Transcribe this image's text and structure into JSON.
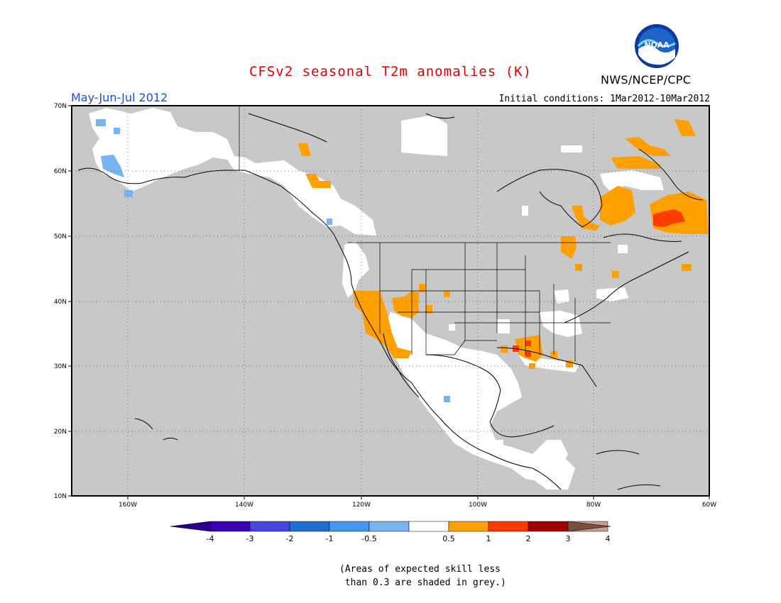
{
  "header": {
    "title": "CFSv2 seasonal T2m anomalies (K)",
    "agency": "NWS/NCEP/CPC",
    "period": "May-Jun-Jul 2012",
    "initial_conditions": "Initial conditions: 1Mar2012-10Mar2012",
    "logo_text": "NOAA"
  },
  "map": {
    "lat_labels": [
      "70N",
      "60N",
      "50N",
      "40N",
      "30N",
      "20N",
      "10N"
    ],
    "lon_labels": [
      "160W",
      "140W",
      "120W",
      "100W",
      "80W",
      "60W"
    ],
    "colors": {
      "grey_low_skill": "#c8c8c8",
      "neutral": "#ffffff",
      "warm_0_5_1": "#ffa000",
      "warm_1_2": "#ff3c00",
      "cool_m1_m0_5": "#78b4f0"
    }
  },
  "colorbar": {
    "labels": [
      "-4",
      "-3",
      "-2",
      "-1",
      "-0.5",
      "0.5",
      "1",
      "2",
      "3",
      "4"
    ],
    "colors": [
      "#3c00b4",
      "#4646dc",
      "#1e6ed2",
      "#4696f0",
      "#78b4f0",
      "#ffffff",
      "#ffa000",
      "#ff3c00",
      "#a00000",
      "#c8a08c"
    ],
    "low_end_color": "#28008c",
    "high_end_color": "#785040"
  },
  "note": {
    "line1": "(Areas of expected skill less",
    "line2": " than 0.3 are shaded in grey.)"
  }
}
